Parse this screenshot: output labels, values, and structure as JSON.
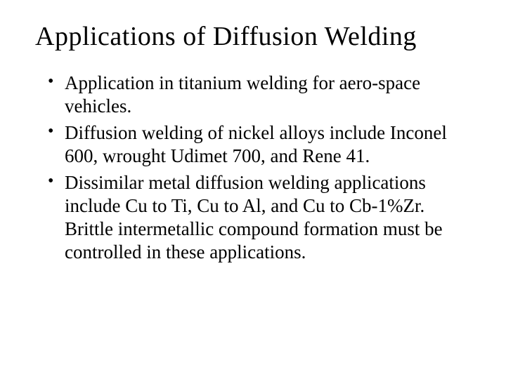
{
  "slide": {
    "title": "Applications of Diffusion Welding",
    "title_fontsize": 38,
    "body_fontsize": 27,
    "background_color": "#ffffff",
    "text_color": "#000000",
    "font_family": "Times New Roman",
    "bullets": [
      "Application in titanium welding for  aero-space vehicles.",
      "Diffusion welding of nickel alloys include Inconel 600, wrought Udimet 700, and Rene 41.",
      "Dissimilar metal diffusion welding applications include Cu to Ti, Cu to Al, and Cu to Cb-1%Zr.   Brittle intermetallic compound formation  must be controlled in these applications."
    ]
  }
}
